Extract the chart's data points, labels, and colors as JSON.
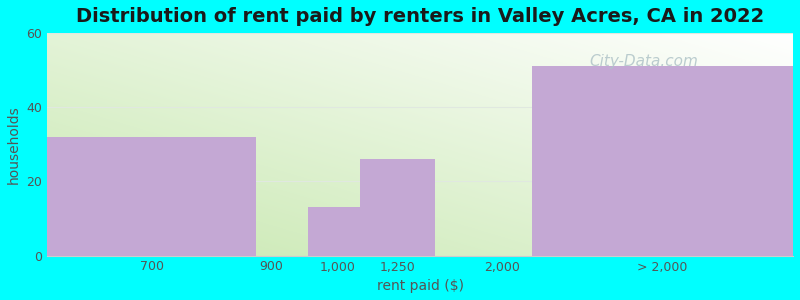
{
  "title": "Distribution of rent paid by renters in Valley Acres, CA in 2022",
  "xlabel": "rent paid ($)",
  "ylabel": "households",
  "bar_color": "#c4a8d4",
  "bg_color": "#00ffff",
  "ylim": [
    0,
    60
  ],
  "yticks": [
    0,
    20,
    40,
    60
  ],
  "xtick_labels": [
    "700",
    "900",
    "1,000",
    "1,250",
    "2,000",
    "> 2,000"
  ],
  "title_fontsize": 14,
  "axis_label_fontsize": 10,
  "tick_fontsize": 9,
  "watermark": "City-Data.com",
  "watermark_color": "#b0c4c8",
  "watermark_fontsize": 11,
  "bars": [
    {
      "x0": 0.0,
      "x1": 2.8,
      "height": 32
    },
    {
      "x0": 3.5,
      "x1": 4.2,
      "height": 13
    },
    {
      "x0": 4.2,
      "x1": 5.2,
      "height": 26
    },
    {
      "x0": 6.5,
      "x1": 10.0,
      "height": 51
    }
  ],
  "xlim": [
    0,
    10
  ],
  "xtick_positions": [
    1.4,
    3.0,
    3.9,
    4.7,
    6.1,
    8.25
  ],
  "grid_color": "#e0e8e0",
  "gradient_colors_lr": [
    "#d0ecc0",
    "#f8fff8"
  ],
  "gradient_colors_tb": [
    "#e8f5e0",
    "#fafffe"
  ]
}
